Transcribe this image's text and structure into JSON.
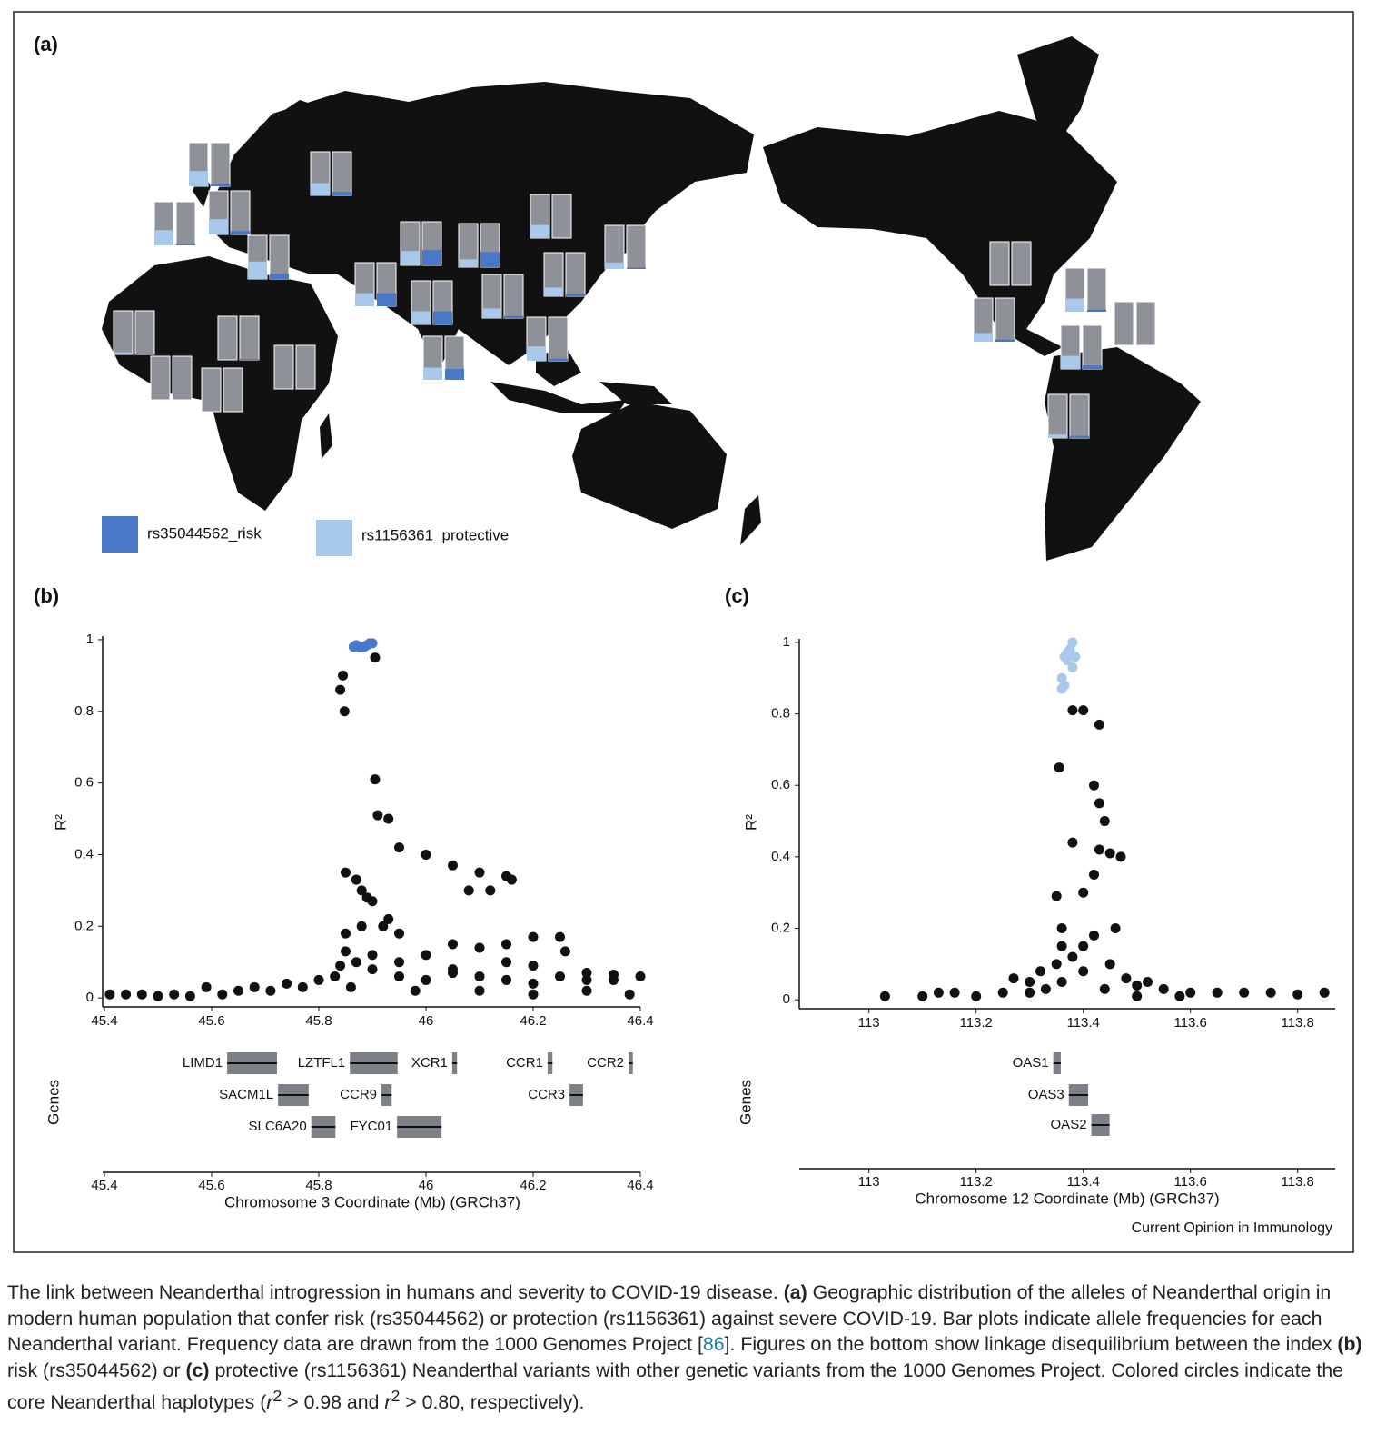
{
  "panel_labels": {
    "a": "(a)",
    "b": "(b)",
    "c": "(c)"
  },
  "map": {
    "legend": [
      {
        "name": "rs35044562_risk",
        "color": "#4a78c8"
      },
      {
        "name": "rs1156361_protective",
        "color": "#a8c8ec"
      }
    ],
    "populations": [
      {
        "protective": 0.35,
        "risk": 0.05
      },
      {
        "protective": 0.28,
        "risk": 0.08
      },
      {
        "protective": 0.35,
        "risk": 0.03
      },
      {
        "protective": 0.35,
        "risk": 0.08
      },
      {
        "protective": 0.4,
        "risk": 0.12
      },
      {
        "protective": 0.05,
        "risk": 0.02
      },
      {
        "protective": 0.02,
        "risk": 0.02
      },
      {
        "protective": 0,
        "risk": 0
      },
      {
        "protective": 0,
        "risk": 0
      },
      {
        "protective": 0,
        "risk": 0
      },
      {
        "protective": 0.3,
        "risk": 0.3
      },
      {
        "protective": 0.33,
        "risk": 0.35
      },
      {
        "protective": 0.18,
        "risk": 0.35
      },
      {
        "protective": 0.3,
        "risk": 0.3
      },
      {
        "protective": 0.28,
        "risk": 0.25
      },
      {
        "protective": 0.22,
        "risk": 0.05
      },
      {
        "protective": 0.3,
        "risk": 0
      },
      {
        "protective": 0.2,
        "risk": 0.05
      },
      {
        "protective": 0.33,
        "risk": 0.05
      },
      {
        "protective": 0.15,
        "risk": 0.03
      },
      {
        "protective": 0,
        "risk": 0
      },
      {
        "protective": 0.3,
        "risk": 0.05
      },
      {
        "protective": 0.2,
        "risk": 0.05
      },
      {
        "protective": 0,
        "risk": 0
      },
      {
        "protective": 0.3,
        "risk": 0.08
      },
      {
        "protective": 0.08,
        "risk": 0.05
      }
    ]
  },
  "chart_data": [
    {
      "type": "scatter",
      "xlabel": "Chromosome 3 Coordinate (Mb) (GRCh37)",
      "ylabel": "R²",
      "genes_label": "Genes",
      "xlim": [
        45.4,
        46.4
      ],
      "xticks": [
        45.4,
        45.6,
        45.8,
        46,
        46.2,
        46.4
      ],
      "ylim": [
        -0.025,
        1.01
      ],
      "yticks": [
        0,
        0.2,
        0.4,
        0.6,
        0.8,
        1
      ],
      "series": [
        {
          "color": "#111111",
          "x": [
            45.41,
            45.44,
            45.47,
            45.5,
            45.53,
            45.56,
            45.59,
            45.62,
            45.65,
            45.68,
            45.71,
            45.74,
            45.77,
            45.8,
            45.83,
            45.86,
            45.9,
            45.95,
            46.0,
            46.05,
            46.1,
            46.15,
            46.2,
            46.25,
            46.3,
            46.35,
            46.4,
            46.3,
            46.38,
            46.2,
            46.1,
            45.98,
            45.845,
            45.84,
            45.848,
            45.905,
            45.905,
            45.91,
            45.93,
            45.85,
            45.87,
            45.89,
            45.9,
            45.88,
            45.95,
            46.0,
            46.05,
            46.1,
            46.15,
            46.16,
            46.08,
            46.12,
            45.85,
            45.88,
            45.92,
            45.95,
            46.05,
            46.1,
            46.15,
            46.2,
            46.25,
            46.26,
            45.85,
            45.9,
            45.93,
            45.84,
            45.87,
            46.0,
            46.3,
            46.35,
            46.2,
            46.15,
            45.95,
            46.05
          ],
          "values": [
            0.01,
            0.01,
            0.01,
            0.005,
            0.01,
            0.005,
            0.03,
            0.01,
            0.02,
            0.03,
            0.02,
            0.04,
            0.03,
            0.05,
            0.06,
            0.03,
            0.08,
            0.06,
            0.05,
            0.07,
            0.06,
            0.05,
            0.04,
            0.06,
            0.05,
            0.05,
            0.06,
            0.02,
            0.01,
            0.01,
            0.02,
            0.02,
            0.9,
            0.86,
            0.8,
            0.95,
            0.61,
            0.51,
            0.5,
            0.35,
            0.33,
            0.28,
            0.27,
            0.3,
            0.42,
            0.4,
            0.37,
            0.35,
            0.34,
            0.33,
            0.3,
            0.3,
            0.18,
            0.2,
            0.2,
            0.18,
            0.15,
            0.14,
            0.15,
            0.17,
            0.17,
            0.13,
            0.13,
            0.12,
            0.22,
            0.09,
            0.1,
            0.12,
            0.07,
            0.065,
            0.09,
            0.1,
            0.1,
            0.08
          ]
        },
        {
          "color": "#4a78c8",
          "x": [
            45.865,
            45.87,
            45.875,
            45.88,
            45.885,
            45.89,
            45.895,
            45.9
          ],
          "values": [
            0.98,
            0.985,
            0.98,
            0.98,
            0.98,
            0.985,
            0.99,
            0.99
          ]
        }
      ],
      "genes": [
        {
          "label": "LIMD1",
          "start": 45.629,
          "end": 45.722
        },
        {
          "label": "LZTFL1",
          "start": 45.858,
          "end": 45.947
        },
        {
          "label": "XCR1",
          "start": 46.049,
          "end": 46.058
        },
        {
          "label": "CCR1",
          "start": 46.227,
          "end": 46.236
        },
        {
          "label": "CCR2",
          "start": 46.378,
          "end": 46.386
        },
        {
          "label": "SACM1L",
          "start": 45.724,
          "end": 45.781
        },
        {
          "label": "CCR9",
          "start": 45.917,
          "end": 45.936
        },
        {
          "label": "CCR3",
          "start": 46.268,
          "end": 46.293
        },
        {
          "label": "SLC6A20",
          "start": 45.786,
          "end": 45.831
        },
        {
          "label": "FYC01",
          "start": 45.946,
          "end": 46.029
        }
      ]
    },
    {
      "type": "scatter",
      "xlabel": "Chromosome 12 Coordinate (Mb) (GRCh37)",
      "ylabel": "R²",
      "genes_label": "Genes",
      "xlim": [
        112.87,
        113.87
      ],
      "xticks": [
        113,
        113.2,
        113.4,
        113.6,
        113.8
      ],
      "ylim": [
        -0.025,
        1.01
      ],
      "yticks": [
        0,
        0.2,
        0.4,
        0.6,
        0.8,
        1
      ],
      "series": [
        {
          "color": "#111111",
          "x": [
            113.03,
            113.1,
            113.13,
            113.16,
            113.2,
            113.25,
            113.27,
            113.3,
            113.32,
            113.35,
            113.35,
            113.355,
            113.36,
            113.38,
            113.38,
            113.4,
            113.43,
            113.42,
            113.43,
            113.44,
            113.43,
            113.45,
            113.47,
            113.42,
            113.46,
            113.4,
            113.38,
            113.42,
            113.45,
            113.4,
            113.36,
            113.48,
            113.5,
            113.52,
            113.55,
            113.6,
            113.65,
            113.7,
            113.75,
            113.8,
            113.85,
            113.33,
            113.3,
            113.44,
            113.4,
            113.36,
            113.5,
            113.58
          ],
          "values": [
            0.01,
            0.01,
            0.02,
            0.02,
            0.01,
            0.02,
            0.06,
            0.05,
            0.08,
            0.1,
            0.29,
            0.65,
            0.2,
            0.44,
            0.81,
            0.81,
            0.77,
            0.6,
            0.55,
            0.5,
            0.42,
            0.41,
            0.4,
            0.35,
            0.2,
            0.15,
            0.12,
            0.18,
            0.1,
            0.08,
            0.05,
            0.06,
            0.04,
            0.05,
            0.03,
            0.02,
            0.02,
            0.02,
            0.02,
            0.015,
            0.02,
            0.03,
            0.02,
            0.03,
            0.3,
            0.15,
            0.01,
            0.01
          ]
        },
        {
          "color": "#a8c8ec",
          "x": [
            113.36,
            113.36,
            113.365,
            113.365,
            113.37,
            113.375,
            113.38,
            113.38,
            113.385,
            113.37
          ],
          "values": [
            0.87,
            0.9,
            0.88,
            0.96,
            0.97,
            0.98,
            1.0,
            0.93,
            0.96,
            0.95
          ]
        }
      ],
      "genes": [
        {
          "label": "OAS1",
          "start": 113.344,
          "end": 113.358
        },
        {
          "label": "OAS3",
          "start": 113.373,
          "end": 113.409
        },
        {
          "label": "OAS2",
          "start": 113.415,
          "end": 113.449
        }
      ]
    }
  ],
  "credit": "Current Opinion in Immunology",
  "caption": [
    "The link between Neanderthal introgression in humans and severity to COVID-19 disease. ",
    "(a)",
    " Geographic distribution of the alleles of Neanderthal origin in modern human population that confer risk (rs35044562) or protection (rs1156361) against severe COVID-19. Bar plots indicate allele frequencies for each Neanderthal variant. Frequency data are drawn from the 1000 Genomes Project [",
    "86",
    "]. Figures on the bottom show linkage disequilibrium between the index ",
    "(b)",
    " risk (rs35044562) or ",
    "(c)",
    " protective (rs1156361) Neanderthal variants with other genetic variants from the 1000 Genomes Project. Colored circles indicate the core Neanderthal haplotypes (",
    "r",
    "2",
    " > 0.98 and ",
    "r",
    "2",
    " > 0.80, respectively)."
  ]
}
